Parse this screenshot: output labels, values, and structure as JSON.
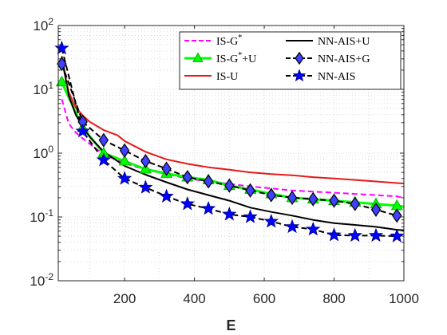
{
  "chart_data": {
    "type": "line",
    "xlabel": "E",
    "ylabel": "",
    "xlim": [
      10,
      1000
    ],
    "ylim": [
      0.01,
      100
    ],
    "yscale": "log",
    "grid": "minor-dotted",
    "legend_placement": "top-right",
    "x_ticks": [
      200,
      400,
      600,
      800,
      1000
    ],
    "x_tick_labels": [
      "200",
      "400",
      "600",
      "800",
      "1000"
    ],
    "y_ticks": [
      0.01,
      0.1,
      1,
      10,
      100
    ],
    "y_tick_labels": [
      {
        "base": "10",
        "exp": "-2"
      },
      {
        "base": "10",
        "exp": "-1"
      },
      {
        "base": "10",
        "exp": "0"
      },
      {
        "base": "10",
        "exp": "1"
      },
      {
        "base": "10",
        "exp": "2"
      }
    ],
    "legend_columns": [
      [
        0,
        1,
        2
      ],
      [
        3,
        4,
        5
      ]
    ],
    "series": [
      {
        "name": "IS-G*",
        "color": "#ff00ff",
        "line": "dashed",
        "marker": "none",
        "x": [
          20,
          40,
          60,
          80,
          100,
          140,
          200,
          260,
          320,
          380,
          440,
          500,
          560,
          620,
          680,
          740,
          800,
          860,
          920,
          980,
          1000
        ],
        "y": [
          7,
          2.9,
          2.1,
          1.7,
          1.4,
          0.95,
          0.7,
          0.55,
          0.47,
          0.4,
          0.36,
          0.33,
          0.3,
          0.28,
          0.26,
          0.25,
          0.24,
          0.23,
          0.22,
          0.21,
          0.2
        ]
      },
      {
        "name": "IS-G*+U",
        "color": "#00ff00",
        "line": "solid",
        "marker": "triangle",
        "x": [
          20,
          80,
          140,
          200,
          260,
          320,
          380,
          440,
          500,
          560,
          620,
          680,
          740,
          800,
          860,
          920,
          980,
          1000
        ],
        "y": [
          13,
          2.5,
          1.0,
          0.75,
          0.56,
          0.48,
          0.42,
          0.38,
          0.31,
          0.27,
          0.23,
          0.2,
          0.19,
          0.18,
          0.17,
          0.16,
          0.15,
          0.145
        ],
        "marker_x": [
          20,
          80,
          140,
          200,
          260,
          320,
          380,
          440,
          500,
          560,
          620,
          680,
          740,
          800,
          860,
          920,
          980
        ],
        "marker_y": [
          13,
          2.5,
          1.0,
          0.75,
          0.56,
          0.48,
          0.42,
          0.38,
          0.31,
          0.27,
          0.23,
          0.2,
          0.19,
          0.18,
          0.17,
          0.16,
          0.15
        ]
      },
      {
        "name": "IS-U",
        "color": "#e41a1c",
        "line": "solid",
        "marker": "none",
        "x": [
          20,
          40,
          60,
          80,
          100,
          140,
          180,
          200,
          260,
          320,
          380,
          440,
          500,
          560,
          620,
          680,
          740,
          800,
          860,
          920,
          980,
          1000
        ],
        "y": [
          28,
          9,
          5.2,
          3.9,
          3.1,
          2.3,
          1.9,
          1.55,
          1.05,
          0.8,
          0.68,
          0.6,
          0.55,
          0.5,
          0.47,
          0.45,
          0.42,
          0.4,
          0.38,
          0.36,
          0.34,
          0.335
        ]
      },
      {
        "name": "NN-AIS+U",
        "color": "#000000",
        "line": "solid",
        "marker": "none",
        "x": [
          20,
          40,
          60,
          80,
          100,
          140,
          200,
          260,
          320,
          380,
          440,
          500,
          560,
          620,
          680,
          740,
          800,
          860,
          920,
          980,
          1000
        ],
        "y": [
          33,
          8,
          4,
          2.6,
          1.8,
          1.05,
          0.63,
          0.46,
          0.35,
          0.27,
          0.22,
          0.18,
          0.14,
          0.12,
          0.105,
          0.09,
          0.08,
          0.075,
          0.07,
          0.063,
          0.062
        ]
      },
      {
        "name": "NN-AIS+G",
        "color": "#000000",
        "marker_color": "#4040ff",
        "line": "dashed",
        "marker": "diamond",
        "x": [
          20,
          80,
          140,
          200,
          260,
          320,
          380,
          440,
          500,
          560,
          620,
          680,
          740,
          800,
          860,
          920,
          980
        ],
        "y": [
          25,
          3.1,
          1.6,
          1.1,
          0.75,
          0.57,
          0.42,
          0.36,
          0.31,
          0.26,
          0.22,
          0.2,
          0.19,
          0.18,
          0.16,
          0.13,
          0.105
        ]
      },
      {
        "name": "NN-AIS",
        "color": "#000000",
        "marker_color": "#0000ff",
        "line": "dashed",
        "marker": "star",
        "x": [
          20,
          80,
          140,
          200,
          260,
          320,
          380,
          440,
          500,
          560,
          620,
          680,
          740,
          800,
          860,
          920,
          980
        ],
        "y": [
          44,
          2.2,
          0.78,
          0.4,
          0.29,
          0.21,
          0.16,
          0.135,
          0.11,
          0.1,
          0.085,
          0.07,
          0.064,
          0.052,
          0.051,
          0.051,
          0.05
        ]
      }
    ]
  }
}
